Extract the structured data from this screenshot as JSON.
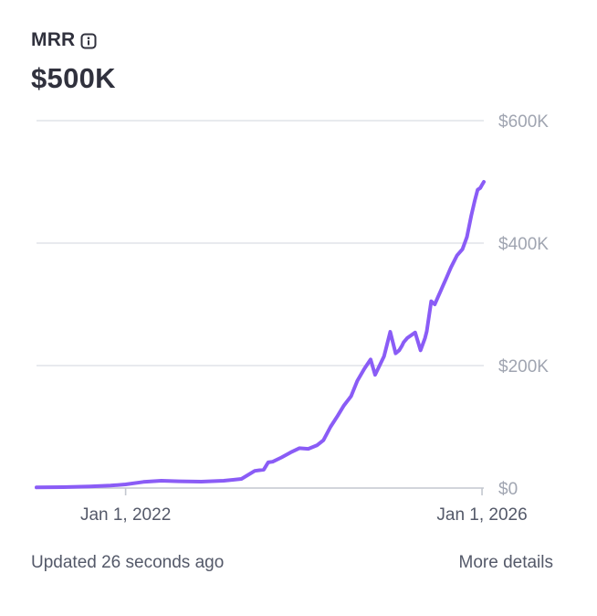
{
  "metric": {
    "title": "MRR",
    "value": "$500K"
  },
  "footer": {
    "updated_text": "Updated 26 seconds ago",
    "details_link": "More details"
  },
  "colors": {
    "line": "#8a5cf6",
    "grid": "#dadde3",
    "axis_text": "#a0a5b1"
  },
  "chart_data": {
    "type": "line",
    "title": "MRR",
    "xlabel": "",
    "ylabel": "",
    "x_domain": [
      2021.0,
      2026.02
    ],
    "ylim": [
      0,
      600000
    ],
    "y_ticks": [
      {
        "value": 600000,
        "label": "$600K"
      },
      {
        "value": 400000,
        "label": "$400K"
      },
      {
        "value": 200000,
        "label": "$200K"
      },
      {
        "value": 0,
        "label": "$0"
      }
    ],
    "x_ticks": [
      {
        "value": 2022.0,
        "label": "Jan 1, 2022"
      },
      {
        "value": 2026.0,
        "label": "Jan 1, 2026"
      }
    ],
    "series": [
      {
        "name": "MRR",
        "x": [
          2021.0,
          2021.3,
          2021.6,
          2021.83,
          2022.0,
          2022.2,
          2022.4,
          2022.6,
          2022.85,
          2023.1,
          2023.3,
          2023.45,
          2023.55,
          2023.6,
          2023.65,
          2023.75,
          2023.85,
          2023.95,
          2024.05,
          2024.15,
          2024.22,
          2024.3,
          2024.38,
          2024.45,
          2024.53,
          2024.6,
          2024.68,
          2024.75,
          2024.8,
          2024.85,
          2024.9,
          2024.97,
          2025.03,
          2025.07,
          2025.1,
          2025.12,
          2025.16,
          2025.25,
          2025.31,
          2025.36,
          2025.38,
          2025.43,
          2025.47,
          2025.5,
          2025.53,
          2025.56,
          2025.6,
          2025.65,
          2025.72,
          2025.78,
          2025.83,
          2025.88,
          2025.92,
          2025.95,
          2025.98,
          2026.0,
          2026.02
        ],
        "values": [
          1000,
          1500,
          2500,
          4000,
          6000,
          10000,
          12000,
          11000,
          10500,
          12000,
          15000,
          28000,
          30000,
          42000,
          43000,
          50000,
          58000,
          65000,
          64000,
          70000,
          78000,
          100000,
          118000,
          135000,
          150000,
          175000,
          195000,
          210000,
          185000,
          200000,
          215000,
          255000,
          220000,
          225000,
          232000,
          238000,
          245000,
          254000,
          225000,
          245000,
          256000,
          305000,
          300000,
          310000,
          320000,
          330000,
          343000,
          360000,
          380000,
          390000,
          410000,
          445000,
          470000,
          487000,
          490000,
          495000,
          500000
        ]
      }
    ]
  }
}
